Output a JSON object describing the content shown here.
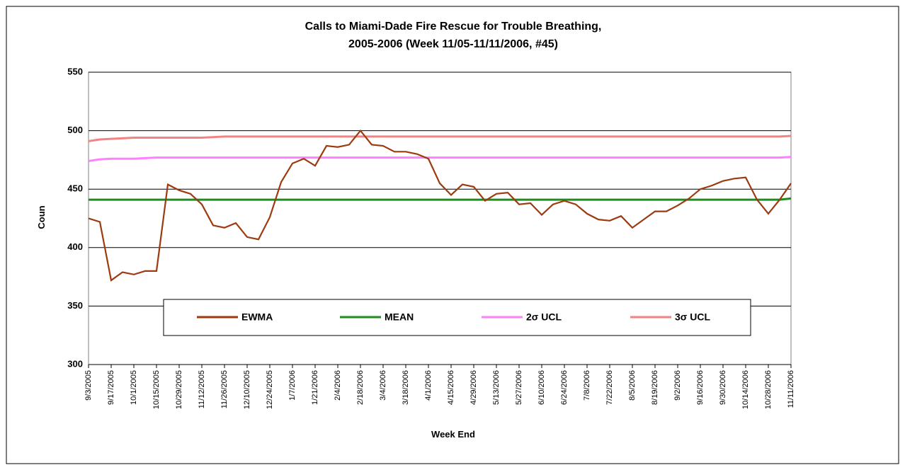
{
  "chart_data": {
    "type": "line",
    "title": [
      "Calls to Miami-Dade Fire Rescue for Trouble Breathing,",
      "2005-2006 (Week 11/05-11/11/2006, #45)"
    ],
    "x_label": "Week End",
    "y_label": "Coun",
    "categories": [
      "9/3/2005",
      null,
      "9/17/2005",
      null,
      "10/1/2005",
      null,
      "10/15/2005",
      null,
      "10/29/2005",
      null,
      "11/12/2005",
      null,
      "11/26/2005",
      null,
      "12/10/2005",
      null,
      "12/24/2005",
      null,
      "1/7/2006",
      null,
      "1/21/2006",
      null,
      "2/4/2006",
      null,
      "2/18/2006",
      null,
      "3/4/2006",
      null,
      "3/18/2006",
      null,
      "4/1/2006",
      null,
      "4/15/2006",
      null,
      "4/29/2006",
      null,
      "5/13/2006",
      null,
      "5/27/2006",
      null,
      "6/10/2006",
      null,
      "6/24/2006",
      null,
      "7/8/2006",
      null,
      "7/22/2006",
      null,
      "8/5/2006",
      null,
      "8/19/2006",
      null,
      "9/2/2006",
      null,
      "9/16/2006",
      null,
      "9/30/2006",
      null,
      "10/14/2006",
      null,
      "10/28/2006",
      null,
      "11/11/2006"
    ],
    "series": [
      {
        "name": "EWMA",
        "color": "#9c3a10",
        "values": [
          425,
          422,
          372,
          379,
          377,
          380,
          380,
          454,
          449,
          446,
          437,
          419,
          417,
          421,
          409,
          407,
          426,
          456,
          472,
          476,
          470,
          487,
          486,
          488,
          500,
          488,
          487,
          482,
          482,
          480,
          476,
          455,
          445,
          454,
          452,
          440,
          446,
          447,
          437,
          438,
          428,
          437,
          440,
          437,
          429,
          424,
          423,
          427,
          417,
          424,
          431,
          431,
          436,
          442,
          450,
          453,
          457,
          459,
          460,
          441,
          429,
          441,
          455
        ]
      },
      {
        "name": "MEAN",
        "color": "#1e8c1e",
        "values": [
          441,
          441,
          441,
          441,
          441,
          441,
          441,
          441,
          441,
          441,
          441,
          441,
          441,
          441,
          441,
          441,
          441,
          441,
          441,
          441,
          441,
          441,
          441,
          441,
          441,
          441,
          441,
          441,
          441,
          441,
          441,
          441,
          441,
          441,
          441,
          441,
          441,
          441,
          441,
          441,
          441,
          441,
          441,
          441,
          441,
          441,
          441,
          441,
          441,
          441,
          441,
          441,
          441,
          441,
          441,
          441,
          441,
          441,
          441,
          441,
          441,
          441,
          442
        ]
      },
      {
        "name": "2σ UCL",
        "color": "#ff80ff",
        "values": [
          474,
          475.5,
          476,
          476,
          476,
          476.5,
          477,
          477,
          477,
          477,
          477,
          477,
          477,
          477,
          477,
          477,
          477,
          477,
          477,
          477,
          477,
          477,
          477,
          477,
          477,
          477,
          477,
          477,
          477,
          477,
          477,
          477,
          477,
          477,
          477,
          477,
          477,
          477,
          477,
          477,
          477,
          477,
          477,
          477,
          477,
          477,
          477,
          477,
          477,
          477,
          477,
          477,
          477,
          477,
          477,
          477,
          477,
          477,
          477,
          477,
          477,
          477,
          477.5
        ]
      },
      {
        "name": "3σ UCL",
        "color": "#f58282",
        "values": [
          491,
          492.5,
          493,
          493.5,
          494,
          494,
          494,
          494,
          494,
          494,
          494,
          494.5,
          495,
          495,
          495,
          495,
          495,
          495,
          495,
          495,
          495,
          495,
          495,
          495,
          495,
          495,
          495,
          495,
          495,
          495,
          495,
          495,
          495,
          495,
          495,
          495,
          495,
          495,
          495,
          495,
          495,
          495,
          495,
          495,
          495,
          495,
          495,
          495,
          495,
          495,
          495,
          495,
          495,
          495,
          495,
          495,
          495,
          495,
          495,
          495,
          495,
          495,
          495.5
        ]
      }
    ],
    "ylim": [
      300,
      550
    ],
    "yticks": [
      300,
      350,
      400,
      450,
      500,
      550
    ],
    "grid": true
  }
}
